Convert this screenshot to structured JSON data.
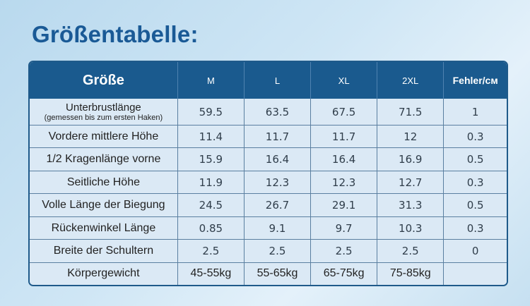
{
  "title": "Größentabelle:",
  "header": {
    "label": "Größe",
    "sizes": [
      "M",
      "L",
      "XL",
      "2XL"
    ],
    "tolerance": "Fehler/см"
  },
  "rows": [
    {
      "label": "Unterbrustlänge",
      "sublabel": "(gemessen bis zum ersten Haken)",
      "values": [
        "59.5",
        "63.5",
        "67.5",
        "71.5"
      ],
      "tolerance": "1"
    },
    {
      "label": "Vordere mittlere Höhe",
      "values": [
        "11.4",
        "11.7",
        "11.7",
        "12"
      ],
      "tolerance": "0.3"
    },
    {
      "label": "1/2 Kragenlänge vorne",
      "values": [
        "15.9",
        "16.4",
        "16.4",
        "16.9"
      ],
      "tolerance": "0.5"
    },
    {
      "label": "Seitliche Höhe",
      "values": [
        "11.9",
        "12.3",
        "12.3",
        "12.7"
      ],
      "tolerance": "0.3"
    },
    {
      "label": "Volle Länge der Biegung",
      "values": [
        "24.5",
        "26.7",
        "29.1",
        "31.3"
      ],
      "tolerance": "0.5"
    },
    {
      "label": "Rückenwinkel Länge",
      "values": [
        "0.85",
        "9.1",
        "9.7",
        "10.3"
      ],
      "tolerance": "0.3"
    },
    {
      "label": "Breite der Schultern",
      "values": [
        "2.5",
        "2.5",
        "2.5",
        "2.5"
      ],
      "tolerance": "0"
    },
    {
      "label": "Körpergewicht",
      "values": [
        "45-55kg",
        "55-65kg",
        "65-75kg",
        "75-85kg"
      ],
      "tolerance": ""
    }
  ]
}
